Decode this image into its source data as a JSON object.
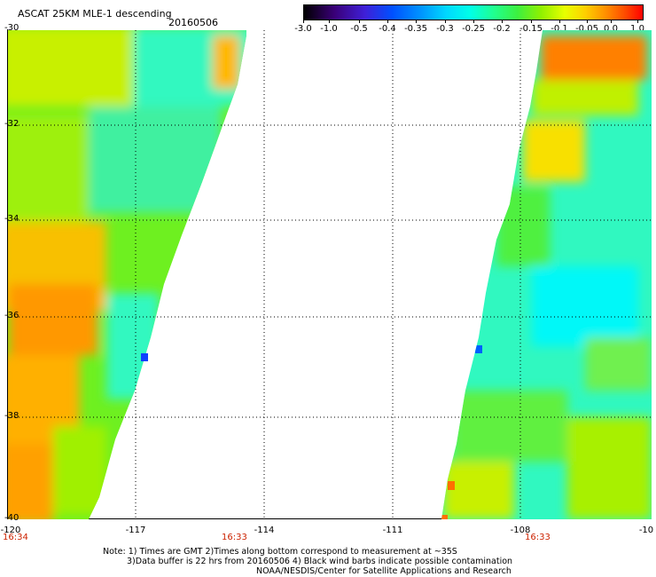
{
  "header": {
    "title": "ASCAT 25KM MLE-1 descending",
    "date": "20160506"
  },
  "colorbar": {
    "labels": [
      "-3.0",
      "-1.0",
      "-0.5",
      "-0.4",
      "-0.35",
      "-0.3",
      "-0.25",
      "-0.2",
      "-0.15",
      "-0.1",
      "-0.05",
      "0.0",
      "1.0"
    ],
    "colors": [
      "#000000",
      "#3f1fd8",
      "#0050ff",
      "#00d8ff",
      "#3cf040",
      "#e8ff00",
      "#ff9000",
      "#ff0000"
    ]
  },
  "map": {
    "lat_labels": [
      "-30",
      "-32",
      "-34",
      "-36",
      "-38",
      "-40"
    ],
    "lon_labels": [
      "-120",
      "-117",
      "-114",
      "-111",
      "-108",
      "-10"
    ],
    "times": [
      "16:34",
      "16:33",
      "16:33"
    ]
  },
  "notes": {
    "line1": "Note: 1) Times are GMT 2)Times along bottom correspond to measurement at ~35S",
    "line2": "3)Data buffer is 22 hrs from 20160506 4) Black wind barbs indicate possible contamination",
    "line3": "NOAA/NESDIS/Center for Satellite Applications and Research"
  }
}
